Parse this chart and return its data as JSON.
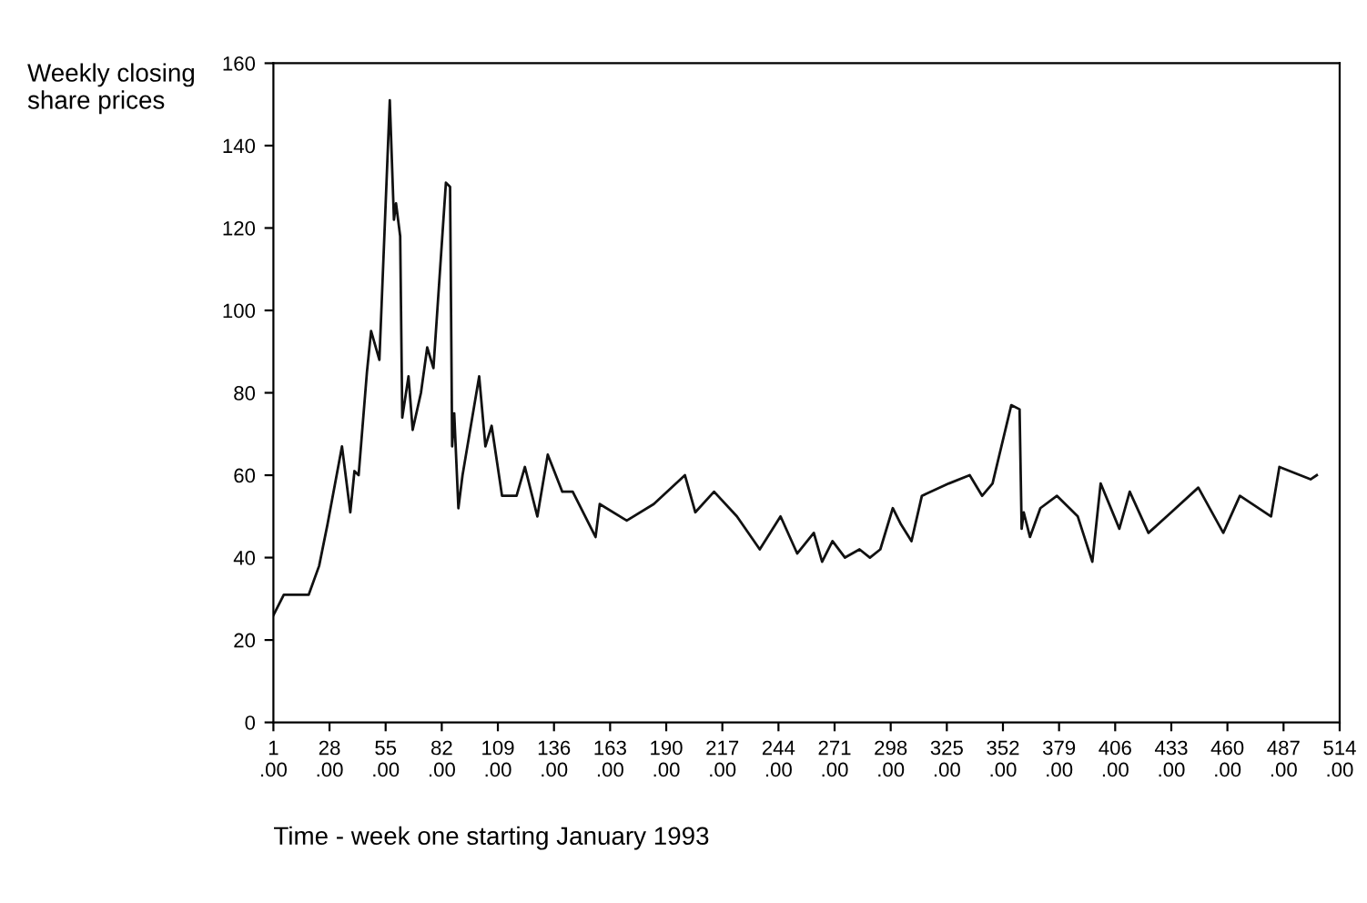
{
  "chart_data": {
    "type": "line",
    "ylabel": "Weekly closing share prices",
    "xlabel": "Time - week one starting January 1993",
    "xlim": [
      1,
      514
    ],
    "ylim": [
      0,
      160
    ],
    "xticks": [
      {
        "value": 1,
        "label": "1.00"
      },
      {
        "value": 28,
        "label": "28.00"
      },
      {
        "value": 55,
        "label": "55.00"
      },
      {
        "value": 82,
        "label": "82.00"
      },
      {
        "value": 109,
        "label": "109.00"
      },
      {
        "value": 136,
        "label": "136.00"
      },
      {
        "value": 163,
        "label": "163.00"
      },
      {
        "value": 190,
        "label": "190.00"
      },
      {
        "value": 217,
        "label": "217.00"
      },
      {
        "value": 244,
        "label": "244.00"
      },
      {
        "value": 271,
        "label": "271.00"
      },
      {
        "value": 298,
        "label": "298.00"
      },
      {
        "value": 325,
        "label": "325.00"
      },
      {
        "value": 352,
        "label": "352.00"
      },
      {
        "value": 379,
        "label": "379.00"
      },
      {
        "value": 406,
        "label": "406.00"
      },
      {
        "value": 433,
        "label": "433.00"
      },
      {
        "value": 460,
        "label": "460.00"
      },
      {
        "value": 487,
        "label": "487.00"
      },
      {
        "value": 514,
        "label": "514.00"
      }
    ],
    "yticks": [
      0,
      20,
      40,
      60,
      80,
      100,
      120,
      140,
      160
    ],
    "grid": false,
    "legend": false,
    "marker": "none",
    "line_style": "solid",
    "series": [
      {
        "color": "#111111",
        "x": [
          1,
          6,
          18,
          23,
          27,
          34,
          38,
          40,
          42,
          46,
          48,
          52,
          57,
          59,
          60,
          62,
          63,
          66,
          68,
          72,
          75,
          78,
          84,
          86,
          87,
          88,
          90,
          92,
          100,
          103,
          106,
          111,
          118,
          122,
          128,
          133,
          140,
          145,
          156,
          158,
          171,
          184,
          199,
          204,
          213,
          224,
          235,
          245,
          253,
          261,
          265,
          270,
          276,
          283,
          288,
          293,
          299,
          303,
          308,
          313,
          326,
          336,
          342,
          347,
          356,
          360,
          361,
          362,
          365,
          370,
          378,
          388,
          395,
          399,
          408,
          413,
          422,
          433,
          446,
          458,
          466,
          481,
          485,
          500,
          503
        ],
        "values": [
          26,
          31,
          31,
          38,
          48,
          67,
          51,
          61,
          60,
          85,
          95,
          88,
          151,
          122,
          126,
          118,
          74,
          84,
          71,
          80,
          91,
          86,
          131,
          130,
          67,
          75,
          52,
          60,
          84,
          67,
          72,
          55,
          55,
          62,
          50,
          65,
          56,
          56,
          45,
          53,
          49,
          53,
          60,
          51,
          56,
          50,
          42,
          50,
          41,
          46,
          39,
          44,
          40,
          42,
          40,
          42,
          52,
          48,
          44,
          55,
          58,
          60,
          55,
          58,
          77,
          76,
          47,
          51,
          45,
          52,
          55,
          50,
          39,
          58,
          47,
          56,
          46,
          51,
          57,
          46,
          55,
          50,
          62,
          59,
          60
        ]
      }
    ]
  }
}
